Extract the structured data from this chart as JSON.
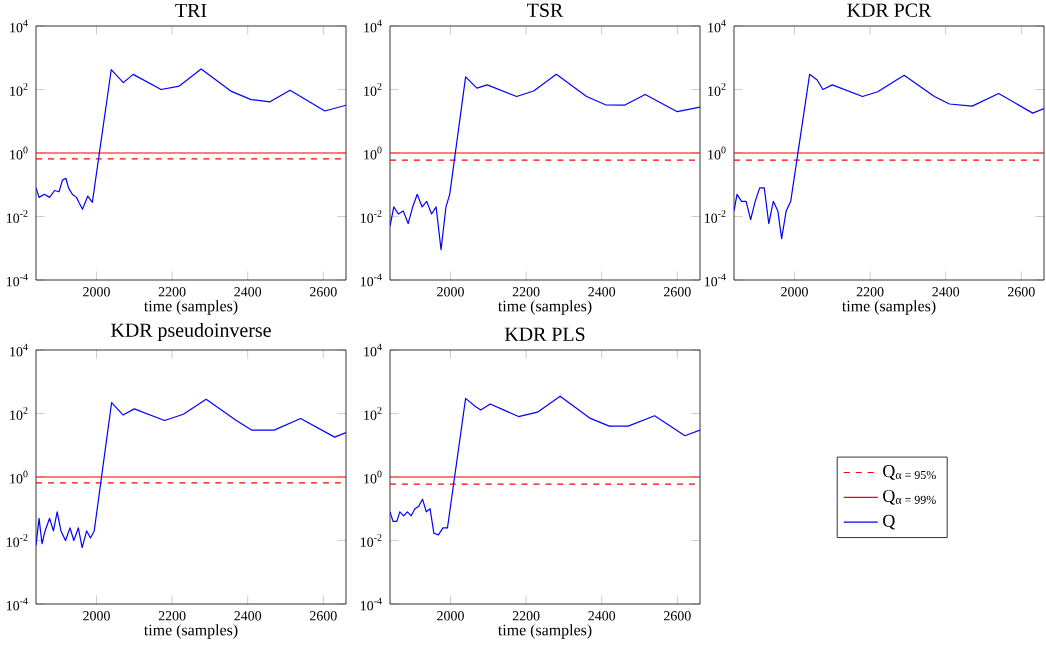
{
  "chart_data": [
    {
      "type": "line",
      "title": "TRI",
      "xlabel": "time (samples)",
      "log": "y",
      "xlim": [
        1840,
        2660
      ],
      "xticks": [
        2000,
        2200,
        2400,
        2600
      ],
      "ylim": [
        0.0001,
        10000
      ],
      "yticks": [
        {
          "value": 0.0001,
          "label": "10$^{-4}$"
        },
        {
          "value": 0.01,
          "label": "10$^{-2}$"
        },
        {
          "value": 1,
          "label": "10$^{0}$"
        },
        {
          "value": 100,
          "label": "10$^{2}$"
        },
        {
          "value": 10000,
          "label": "10$^{4}$"
        }
      ],
      "series": [
        {
          "color": "#ff0000",
          "line_style": "dashed",
          "x": [
            1840,
            2660
          ],
          "values": [
            0.65,
            0.65
          ]
        },
        {
          "color": "#ff0000",
          "line_style": "solid",
          "x": [
            1840,
            2660
          ],
          "values": [
            1,
            1
          ]
        },
        {
          "color": "#0000ff",
          "line_style": "solid",
          "x": [
            1840,
            1848,
            1862,
            1876,
            1889,
            1901,
            1910,
            1919,
            1926,
            1936,
            1947,
            1954,
            1963,
            1977,
            1989,
            2039,
            2071,
            2097,
            2171,
            2219,
            2277,
            2357,
            2409,
            2459,
            2512,
            2604,
            2660
          ],
          "values": [
            0.08,
            0.04,
            0.05,
            0.04,
            0.066,
            0.06,
            0.14,
            0.16,
            0.08,
            0.05,
            0.04,
            0.027,
            0.017,
            0.044,
            0.028,
            420,
            165,
            300,
            100,
            128,
            440,
            87,
            48,
            41,
            95,
            21,
            32
          ]
        }
      ]
    },
    {
      "type": "line",
      "title": "TSR",
      "xlabel": "time (samples)",
      "log": "y",
      "xlim": [
        1840,
        2660
      ],
      "xticks": [
        2000,
        2200,
        2400,
        2600
      ],
      "ylim": [
        0.0001,
        10000
      ],
      "yticks": [
        {
          "value": 0.0001,
          "label": "10$^{-4}$"
        },
        {
          "value": 0.01,
          "label": "10$^{-2}$"
        },
        {
          "value": 1,
          "label": "10$^{0}$"
        },
        {
          "value": 100,
          "label": "10$^{2}$"
        },
        {
          "value": 10000,
          "label": "10$^{4}$"
        }
      ],
      "series": [
        {
          "color": "#ff0000",
          "line_style": "dashed",
          "x": [
            1840,
            2660
          ],
          "values": [
            0.6,
            0.6
          ]
        },
        {
          "color": "#ff0000",
          "line_style": "solid",
          "x": [
            1840,
            2660
          ],
          "values": [
            1,
            1
          ]
        },
        {
          "color": "#0000ff",
          "line_style": "solid",
          "x": [
            1840,
            1850,
            1862,
            1875,
            1888,
            1900,
            1912,
            1925,
            1937,
            1950,
            1962,
            1975,
            1988,
            1998,
            2040,
            2070,
            2097,
            2175,
            2220,
            2280,
            2360,
            2410,
            2460,
            2515,
            2600,
            2660
          ],
          "values": [
            0.005,
            0.02,
            0.012,
            0.015,
            0.006,
            0.02,
            0.05,
            0.02,
            0.03,
            0.012,
            0.02,
            0.0009,
            0.02,
            0.05,
            250,
            110,
            140,
            60,
            90,
            300,
            60,
            33,
            32,
            70,
            20,
            28
          ]
        }
      ]
    },
    {
      "type": "line",
      "title": "KDR PCR",
      "xlabel": "time (samples)",
      "log": "y",
      "xlim": [
        1840,
        2660
      ],
      "xticks": [
        2000,
        2200,
        2400,
        2600
      ],
      "ylim": [
        0.0001,
        10000
      ],
      "yticks": [
        {
          "value": 0.0001,
          "label": "10$^{-4}$"
        },
        {
          "value": 0.01,
          "label": "10$^{-2}$"
        },
        {
          "value": 1,
          "label": "10$^{0}$"
        },
        {
          "value": 100,
          "label": "10$^{2}$"
        },
        {
          "value": 10000,
          "label": "10$^{4}$"
        }
      ],
      "series": [
        {
          "color": "#ff0000",
          "line_style": "dashed",
          "x": [
            1840,
            2660
          ],
          "values": [
            0.6,
            0.6
          ]
        },
        {
          "color": "#ff0000",
          "line_style": "solid",
          "x": [
            1840,
            2660
          ],
          "values": [
            1,
            1
          ]
        },
        {
          "color": "#0000ff",
          "line_style": "solid",
          "x": [
            1840,
            1848,
            1860,
            1872,
            1884,
            1896,
            1908,
            1920,
            1932,
            1944,
            1956,
            1966,
            1978,
            1990,
            2040,
            2060,
            2075,
            2100,
            2180,
            2220,
            2290,
            2370,
            2410,
            2470,
            2540,
            2630,
            2660
          ],
          "values": [
            0.015,
            0.05,
            0.03,
            0.03,
            0.008,
            0.03,
            0.08,
            0.08,
            0.006,
            0.03,
            0.015,
            0.002,
            0.015,
            0.03,
            300,
            200,
            100,
            140,
            60,
            85,
            280,
            60,
            35,
            30,
            75,
            18,
            25
          ]
        }
      ]
    },
    {
      "type": "line",
      "title": "KDR pseudoinverse",
      "xlabel": "time (samples)",
      "log": "y",
      "xlim": [
        1840,
        2660
      ],
      "xticks": [
        2000,
        2200,
        2400,
        2600
      ],
      "ylim": [
        0.0001,
        10000
      ],
      "yticks": [
        {
          "value": 0.0001,
          "label": "10$^{-4}$"
        },
        {
          "value": 0.01,
          "label": "10$^{-2}$"
        },
        {
          "value": 1,
          "label": "10$^{0}$"
        },
        {
          "value": 100,
          "label": "10$^{2}$"
        },
        {
          "value": 10000,
          "label": "10$^{4}$"
        }
      ],
      "series": [
        {
          "color": "#ff0000",
          "line_style": "dashed",
          "x": [
            1840,
            2660
          ],
          "values": [
            0.65,
            0.65
          ]
        },
        {
          "color": "#ff0000",
          "line_style": "solid",
          "x": [
            1840,
            2660
          ],
          "values": [
            1,
            1
          ]
        },
        {
          "color": "#0000ff",
          "line_style": "solid",
          "x": [
            1840,
            1848,
            1856,
            1864,
            1876,
            1886,
            1896,
            1906,
            1918,
            1930,
            1940,
            1952,
            1962,
            1974,
            1984,
            1994,
            2040,
            2070,
            2100,
            2180,
            2230,
            2290,
            2370,
            2410,
            2470,
            2540,
            2630,
            2660
          ],
          "values": [
            0.007,
            0.05,
            0.008,
            0.02,
            0.05,
            0.02,
            0.08,
            0.02,
            0.01,
            0.025,
            0.01,
            0.025,
            0.006,
            0.02,
            0.012,
            0.02,
            220,
            90,
            140,
            60,
            95,
            280,
            60,
            30,
            30,
            70,
            18,
            25
          ]
        }
      ]
    },
    {
      "type": "line",
      "title": "KDR PLS",
      "xlabel": "time (samples)",
      "log": "y",
      "legend": "right",
      "xlim": [
        1840,
        2660
      ],
      "xticks": [
        2000,
        2200,
        2400,
        2600
      ],
      "ylim": [
        0.0001,
        10000
      ],
      "yticks": [
        {
          "value": 0.0001,
          "label": "10$^{-4}$"
        },
        {
          "value": 0.01,
          "label": "10$^{-2}$"
        },
        {
          "value": 1,
          "label": "10$^{0}$"
        },
        {
          "value": 100,
          "label": "10$^{2}$"
        },
        {
          "value": 10000,
          "label": "10$^{4}$"
        }
      ],
      "series": [
        {
          "name": "Q$_{α = 95%}$",
          "color": "#ff0000",
          "line_style": "dashed",
          "x": [
            1840,
            2660
          ],
          "values": [
            0.6,
            0.6
          ]
        },
        {
          "name": "Q$_{α = 99%}$",
          "color": "#ff0000",
          "line_style": "solid",
          "x": [
            1840,
            2660
          ],
          "values": [
            1,
            1
          ]
        },
        {
          "name": "Q",
          "color": "#0000ff",
          "line_style": "solid",
          "x": [
            1840,
            1848,
            1858,
            1866,
            1876,
            1886,
            1896,
            1906,
            1916,
            1926,
            1936,
            1946,
            1956,
            1968,
            1980,
            1992,
            2040,
            2065,
            2080,
            2105,
            2180,
            2230,
            2290,
            2370,
            2420,
            2470,
            2540,
            2620,
            2660
          ],
          "values": [
            0.08,
            0.04,
            0.04,
            0.08,
            0.06,
            0.08,
            0.06,
            0.1,
            0.12,
            0.2,
            0.08,
            0.1,
            0.017,
            0.015,
            0.025,
            0.025,
            300,
            170,
            130,
            200,
            80,
            110,
            350,
            70,
            40,
            40,
            85,
            20,
            30
          ]
        }
      ]
    }
  ]
}
